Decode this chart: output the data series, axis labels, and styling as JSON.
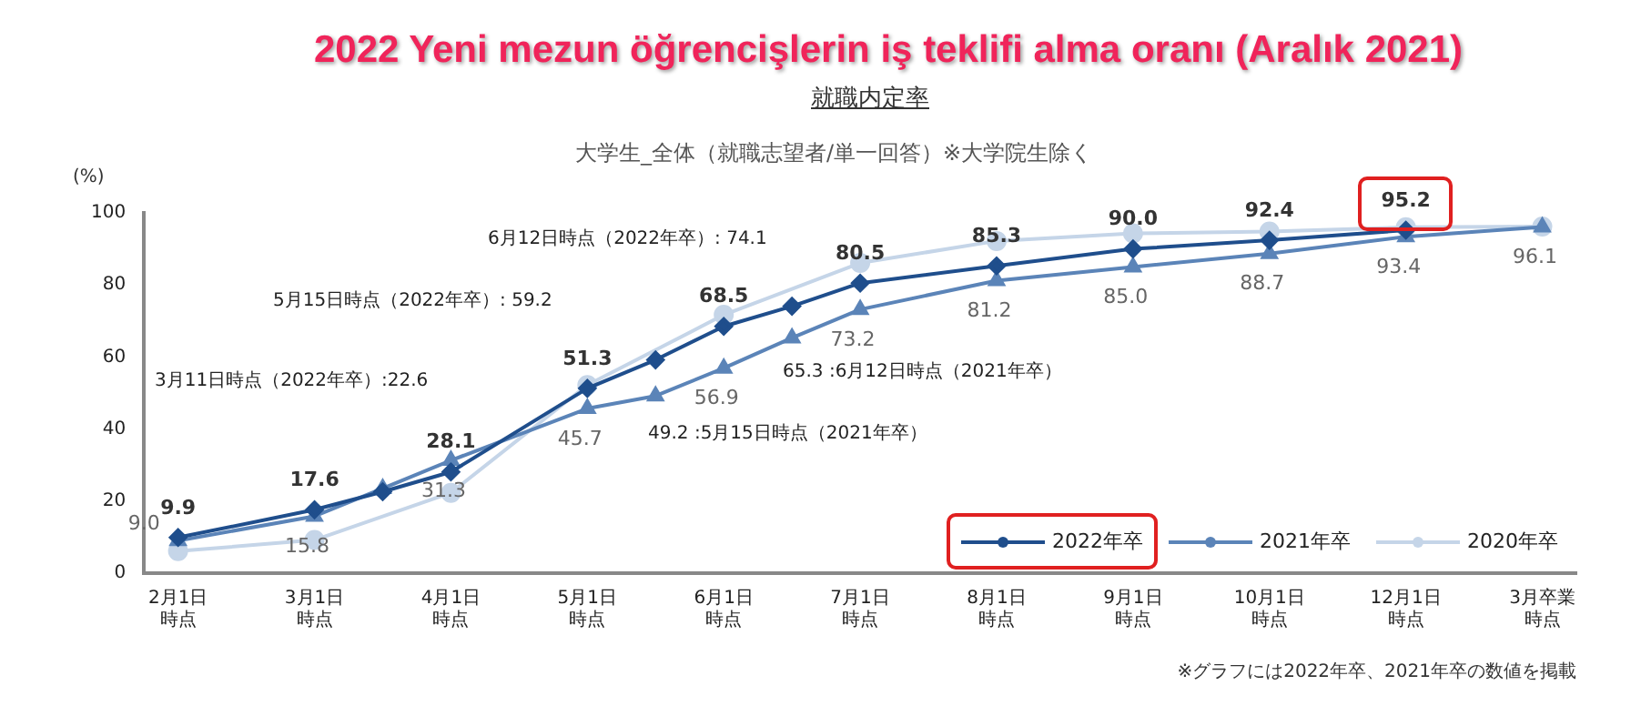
{
  "chart_data": {
    "type": "line",
    "title": "2022 Yeni mezun öğrencişlerin iş teklifi alma oranı (Aralık 2021)",
    "subtitle": "就職内定率",
    "ylabel": "(%)",
    "categories": [
      "2月1日時点",
      null,
      "3月1日時点",
      null,
      "4月1日時点",
      null,
      "5月1日時点",
      null,
      "6月1日時点",
      null,
      "7月1日時点",
      null,
      "8月1日時点",
      null,
      "9月1日時点",
      null,
      "10月1日時点",
      null,
      "12月1日時点",
      null,
      "3月卒業時点"
    ],
    "ylim": [
      0,
      100
    ],
    "yticks": [
      0,
      20,
      40,
      60,
      80,
      100
    ],
    "grid": false,
    "legend": "bottom right",
    "line_style": "solid",
    "series": [
      {
        "name": "2022年卒",
        "color": "#1f4e8c",
        "marker": "diamond",
        "values": [
          9.9,
          null,
          17.6,
          22.6,
          28.1,
          null,
          51.3,
          59.2,
          68.5,
          74.1,
          80.5,
          null,
          85.3,
          null,
          90.0,
          null,
          92.4,
          null,
          95.2,
          null,
          null
        ],
        "value_labels": [
          "9.9",
          null,
          "17.6",
          null,
          "28.1",
          null,
          "51.3",
          null,
          "68.5",
          null,
          "80.5",
          null,
          "85.3",
          null,
          "90.0",
          null,
          "92.4",
          null,
          "95.2",
          null,
          null
        ]
      },
      {
        "name": "2021年卒",
        "color": "#5b84b8",
        "marker": "triangle",
        "values": [
          9.0,
          null,
          15.8,
          23.5,
          31.3,
          null,
          45.7,
          49.2,
          56.9,
          65.3,
          73.2,
          null,
          81.2,
          null,
          85.0,
          null,
          88.7,
          null,
          93.4,
          null,
          96.1
        ],
        "value_labels": [
          "9.0",
          null,
          "15.8",
          null,
          "31.3",
          null,
          "45.7",
          null,
          "56.9",
          null,
          "73.2",
          null,
          "81.2",
          null,
          "85.0",
          null,
          "88.7",
          null,
          "93.4",
          null,
          "96.1"
        ]
      },
      {
        "name": "2020年卒",
        "color": "#c5d5e8",
        "marker": "circle",
        "values": [
          6.1,
          null,
          9.2,
          null,
          22.3,
          null,
          52.2,
          null,
          71.7,
          null,
          86.1,
          null,
          92.2,
          null,
          94.3,
          null,
          94.8,
          null,
          96.0,
          null,
          96.2
        ]
      }
    ],
    "annotations": [
      "大学生_全体（就職志望者/単一回答）※大学院生除く",
      "3月11日時点（2022年卒）:22.6",
      "5月15日時点（2022年卒）: 59.2",
      "6月12日時点（2022年卒）: 74.1",
      "49.2 :5月15日時点（2021年卒）",
      "65.3 :6月12日時点（2021年卒）",
      "※グラフには2022年卒、2021年卒の数値を掲載"
    ]
  }
}
